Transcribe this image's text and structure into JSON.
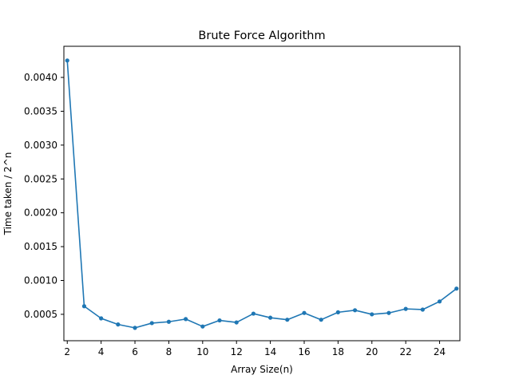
{
  "chart_data": {
    "type": "line",
    "title": "Brute Force Algorithm",
    "xlabel": "Array Size(n)",
    "ylabel": "Time taken / 2^n",
    "xlim": [
      1.8,
      25.2
    ],
    "ylim": [
      0.00011,
      0.00446
    ],
    "xticks": [
      2,
      4,
      6,
      8,
      10,
      12,
      14,
      16,
      18,
      20,
      22,
      24
    ],
    "xtick_labels": [
      "2",
      "4",
      "6",
      "8",
      "10",
      "12",
      "14",
      "16",
      "18",
      "20",
      "22",
      "24"
    ],
    "yticks": [
      0.0005,
      0.001,
      0.0015,
      0.002,
      0.0025,
      0.003,
      0.0035,
      0.004
    ],
    "ytick_labels": [
      "0.0005",
      "0.0010",
      "0.0015",
      "0.0020",
      "0.0025",
      "0.0030",
      "0.0035",
      "0.0040"
    ],
    "grid": false,
    "series": [
      {
        "color": "#1f77b4",
        "marker": "circle",
        "x": [
          2,
          3,
          4,
          5,
          6,
          7,
          8,
          9,
          10,
          11,
          12,
          13,
          14,
          15,
          16,
          17,
          18,
          19,
          20,
          21,
          22,
          23,
          24,
          25
        ],
        "y": [
          0.00425,
          0.00062,
          0.00044,
          0.00035,
          0.0003,
          0.00037,
          0.00039,
          0.00043,
          0.00032,
          0.00041,
          0.00038,
          0.00051,
          0.00045,
          0.00042,
          0.00052,
          0.00042,
          0.00053,
          0.00056,
          0.0005,
          0.00052,
          0.00058,
          0.00057,
          0.00069,
          0.00088
        ]
      }
    ]
  }
}
